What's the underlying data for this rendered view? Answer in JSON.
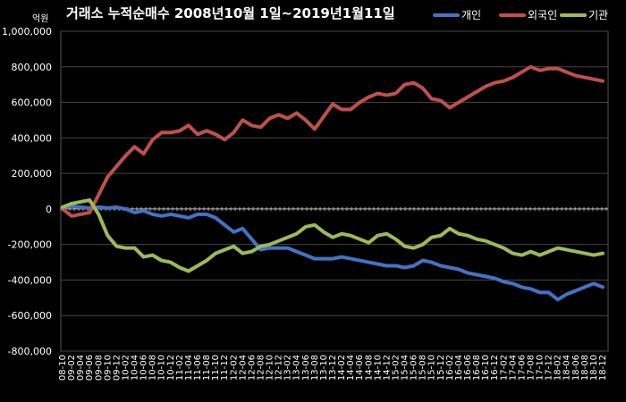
{
  "chart_data": {
    "type": "line",
    "title": "거래소 누적순매수 2008년10월 1일~2019년1월11일",
    "unit_label": "억원",
    "ylim": [
      -800000,
      1000000
    ],
    "yticks": [
      "1,000,000",
      "800,000",
      "600,000",
      "400,000",
      "200,000",
      "0",
      "-200,000",
      "-400,000",
      "-600,000",
      "-800,000"
    ],
    "ytick_values": [
      1000000,
      800000,
      600000,
      400000,
      200000,
      0,
      -200000,
      -400000,
      -600000,
      -800000
    ],
    "grid": true,
    "legend_position": "top-right",
    "categories": [
      "08-10",
      "09-02",
      "09-04",
      "09-06",
      "09-08",
      "09-10",
      "09-12",
      "10-02",
      "10-04",
      "10-06",
      "10-08",
      "10-10",
      "10-12",
      "11-02",
      "11-04",
      "11-06",
      "11-08",
      "11-10",
      "11-12",
      "12-02",
      "12-04",
      "12-06",
      "12-08",
      "12-10",
      "12-12",
      "13-02",
      "13-04",
      "13-06",
      "13-08",
      "13-10",
      "13-12",
      "14-02",
      "14-04",
      "14-06",
      "14-08",
      "14-10",
      "14-12",
      "15-02",
      "15-04",
      "15-06",
      "15-08",
      "15-10",
      "15-12",
      "16-02",
      "16-04",
      "16-06",
      "16-08",
      "16-10",
      "16-12",
      "17-02",
      "17-04",
      "17-06",
      "17-08",
      "17-10",
      "17-12",
      "18-02",
      "18-04",
      "18-06",
      "18-08",
      "18-10",
      "18-12"
    ],
    "series": [
      {
        "name": "개인",
        "color": "#4472C4",
        "values": [
          10000,
          15000,
          10000,
          5000,
          10000,
          5000,
          10000,
          0,
          -20000,
          -10000,
          -30000,
          -40000,
          -30000,
          -40000,
          -50000,
          -30000,
          -30000,
          -50000,
          -90000,
          -130000,
          -110000,
          -170000,
          -230000,
          -220000,
          -220000,
          -220000,
          -240000,
          -260000,
          -280000,
          -280000,
          -280000,
          -270000,
          -280000,
          -290000,
          -300000,
          -310000,
          -320000,
          -320000,
          -330000,
          -320000,
          -290000,
          -300000,
          -320000,
          -330000,
          -340000,
          -360000,
          -370000,
          -380000,
          -390000,
          -410000,
          -420000,
          -440000,
          -450000,
          -470000,
          -470000,
          -510000,
          -480000,
          -460000,
          -440000,
          -420000,
          -440000
        ]
      },
      {
        "name": "외국인",
        "color": "#C0504D",
        "values": [
          0,
          -40000,
          -30000,
          -20000,
          80000,
          180000,
          240000,
          300000,
          350000,
          310000,
          390000,
          430000,
          430000,
          440000,
          470000,
          420000,
          440000,
          420000,
          390000,
          430000,
          500000,
          470000,
          460000,
          510000,
          530000,
          510000,
          540000,
          500000,
          450000,
          520000,
          590000,
          560000,
          560000,
          600000,
          630000,
          650000,
          640000,
          650000,
          700000,
          710000,
          680000,
          620000,
          610000,
          570000,
          600000,
          630000,
          660000,
          690000,
          710000,
          720000,
          740000,
          770000,
          800000,
          780000,
          790000,
          790000,
          770000,
          750000,
          740000,
          730000,
          720000
        ]
      },
      {
        "name": "기관",
        "color": "#9BBB59",
        "values": [
          10000,
          30000,
          40000,
          50000,
          -30000,
          -150000,
          -210000,
          -220000,
          -220000,
          -270000,
          -260000,
          -290000,
          -300000,
          -330000,
          -350000,
          -320000,
          -290000,
          -250000,
          -230000,
          -210000,
          -250000,
          -240000,
          -210000,
          -200000,
          -180000,
          -160000,
          -140000,
          -100000,
          -90000,
          -130000,
          -160000,
          -140000,
          -150000,
          -170000,
          -190000,
          -150000,
          -140000,
          -170000,
          -210000,
          -220000,
          -200000,
          -160000,
          -150000,
          -110000,
          -140000,
          -150000,
          -170000,
          -180000,
          -200000,
          -220000,
          -250000,
          -260000,
          -240000,
          -260000,
          -240000,
          -220000,
          -230000,
          -240000,
          -250000,
          -260000,
          -250000
        ]
      }
    ]
  }
}
